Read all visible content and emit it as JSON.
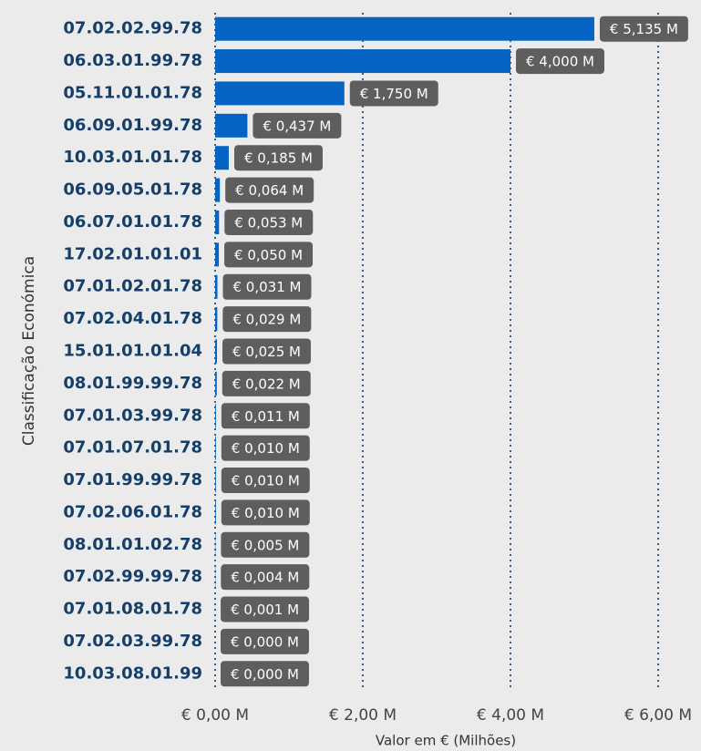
{
  "chart_data": {
    "type": "bar",
    "orientation": "horizontal",
    "x_label": "Valor em € (Milhões)",
    "y_label": "Classificação Económica",
    "categories": [
      "07.02.02.99.78",
      "06.03.01.99.78",
      "05.11.01.01.78",
      "06.09.01.99.78",
      "10.03.01.01.78",
      "06.09.05.01.78",
      "06.07.01.01.78",
      "17.02.01.01.01",
      "07.01.02.01.78",
      "07.02.04.01.78",
      "15.01.01.01.04",
      "08.01.99.99.78",
      "07.01.03.99.78",
      "07.01.07.01.78",
      "07.01.99.99.78",
      "07.02.06.01.78",
      "08.01.01.02.78",
      "07.02.99.99.78",
      "07.01.08.01.78",
      "07.02.03.99.78",
      "10.03.08.01.99"
    ],
    "values": [
      5.135,
      4.0,
      1.75,
      0.437,
      0.185,
      0.064,
      0.053,
      0.05,
      0.031,
      0.029,
      0.025,
      0.022,
      0.011,
      0.01,
      0.01,
      0.01,
      0.005,
      0.004,
      0.001,
      0.0,
      0.0
    ],
    "value_labels": [
      "€ 5,135 M",
      "€ 4,000 M",
      "€ 1,750 M",
      "€ 0,437 M",
      "€ 0,185 M",
      "€ 0,064 M",
      "€ 0,053 M",
      "€ 0,050 M",
      "€ 0,031 M",
      "€ 0,029 M",
      "€ 0,025 M",
      "€ 0,022 M",
      "€ 0,011 M",
      "€ 0,010 M",
      "€ 0,010 M",
      "€ 0,010 M",
      "€ 0,005 M",
      "€ 0,004 M",
      "€ 0,001 M",
      "€ 0,000 M",
      "€ 0,000 M"
    ],
    "color": "#0563c1",
    "xlim": [
      0,
      6
    ],
    "xticks": [
      {
        "value": 0,
        "label": "€ 0,00 M"
      },
      {
        "value": 2,
        "label": "€ 2,00 M"
      },
      {
        "value": 4,
        "label": "€ 4,00 M"
      },
      {
        "value": 6,
        "label": "€ 6,00 M"
      }
    ],
    "grid": true
  }
}
